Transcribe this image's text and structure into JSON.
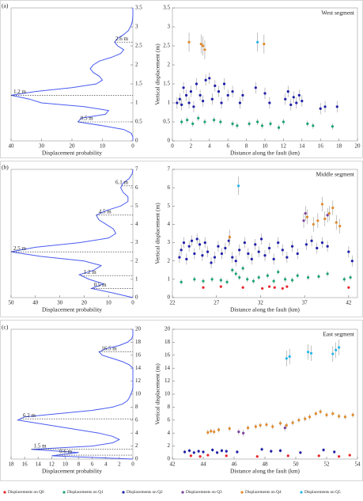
{
  "chart_data": [
    {
      "type": "density",
      "panel_label": "(a)",
      "xlabel": "Displacement probability",
      "color": "#4a5cf0",
      "xlim": [
        40,
        0
      ],
      "xticks": [
        40,
        30,
        20,
        10,
        0
      ],
      "ylim": [
        0,
        3.5
      ],
      "yticks": [
        0,
        0.5,
        1,
        1.5,
        2,
        2.5,
        3,
        3.5
      ],
      "y": [
        0,
        0.1,
        0.2,
        0.3,
        0.4,
        0.5,
        0.6,
        0.7,
        0.8,
        0.9,
        1.0,
        1.1,
        1.2,
        1.3,
        1.4,
        1.5,
        1.6,
        1.7,
        1.8,
        1.9,
        2.0,
        2.1,
        2.2,
        2.3,
        2.4,
        2.5,
        2.6,
        2.7,
        2.8,
        2.9,
        3.0,
        3.1,
        3.2,
        3.3,
        3.4,
        3.5
      ],
      "values": [
        0,
        0,
        0.5,
        3,
        10,
        18,
        17,
        9,
        8,
        16,
        30,
        34,
        40,
        32,
        20,
        12,
        10,
        11,
        13,
        14,
        13,
        11,
        7,
        4,
        3,
        5,
        6,
        5,
        3,
        1.5,
        0.8,
        0.3,
        0.1,
        0,
        0,
        0
      ],
      "annotations": [
        {
          "value": 2.6,
          "label": "2.6 m"
        },
        {
          "value": 1.2,
          "label": "1.2 m"
        },
        {
          "value": 0.5,
          "label": "0.5 m"
        }
      ]
    },
    {
      "type": "scatter",
      "title": "West segment",
      "xlabel": "Distance  along the fault (km)",
      "ylabel": "Vertical displacement (m)",
      "xlim": [
        0,
        20
      ],
      "xticks": [
        0,
        2,
        4,
        6,
        8,
        10,
        12,
        14,
        16,
        18,
        20
      ],
      "ylim": [
        0,
        3.5
      ],
      "yticks": [
        0,
        0.5,
        1,
        1.5,
        2,
        2.5,
        3,
        3.5
      ],
      "series": [
        {
          "name": "Displacements on Q1",
          "color": "#1aa371",
          "error": 0.08,
          "x": [
            1.0,
            1.6,
            2.2,
            2.8,
            3.5,
            4.5,
            5.2,
            6.5,
            7.0,
            8.3,
            9.2,
            9.7,
            10.6,
            11.5,
            12.0,
            14.6,
            15.2,
            17.3
          ],
          "values": [
            0.5,
            0.55,
            0.45,
            0.6,
            0.5,
            0.55,
            0.5,
            0.45,
            0.4,
            0.45,
            0.5,
            0.4,
            0.45,
            0.35,
            0.5,
            0.45,
            0.4,
            0.38
          ]
        },
        {
          "name": "Displacements on Q2",
          "color": "#1f1fa8",
          "error": 0.15,
          "x": [
            0.5,
            0.8,
            1.0,
            1.2,
            1.5,
            1.8,
            2.0,
            2.3,
            2.6,
            3.0,
            3.3,
            3.6,
            4.0,
            4.3,
            4.6,
            5.0,
            5.3,
            5.6,
            6.0,
            6.5,
            7.3,
            7.6,
            9.0,
            10.0,
            10.5,
            12.2,
            12.5,
            12.8,
            13.1,
            13.4,
            13.7,
            14.0,
            16.0,
            16.5,
            17.8
          ],
          "values": [
            1.0,
            1.1,
            0.95,
            1.4,
            1.2,
            1.0,
            1.3,
            0.9,
            1.5,
            1.2,
            1.05,
            1.6,
            1.65,
            1.1,
            1.45,
            1.3,
            1.0,
            1.5,
            1.2,
            1.3,
            1.0,
            1.2,
            1.4,
            1.25,
            1.0,
            1.1,
            1.3,
            0.95,
            1.15,
            1.0,
            1.2,
            1.05,
            0.85,
            0.9,
            0.9
          ]
        },
        {
          "name": "Displacements on Q4",
          "color": "#e08a2c",
          "error": 0.25,
          "x": [
            1.8,
            3.1,
            3.3,
            3.5,
            9.9
          ],
          "values": [
            2.6,
            2.55,
            2.5,
            2.4,
            2.55
          ]
        },
        {
          "name": "Displacements on Q5",
          "color": "#29b5e8",
          "error": 0.25,
          "x": [
            9.2
          ],
          "values": [
            2.6
          ]
        }
      ]
    },
    {
      "type": "density",
      "panel_label": "(b)",
      "xlabel": "Displacement probability",
      "color": "#4a5cf0",
      "xlim": [
        50,
        0
      ],
      "xticks": [
        50,
        40,
        30,
        20,
        10,
        0
      ],
      "ylim": [
        0,
        7
      ],
      "yticks": [
        0,
        1,
        2,
        3,
        4,
        5,
        6,
        7
      ],
      "y": [
        0,
        0.25,
        0.5,
        0.75,
        1.0,
        1.25,
        1.5,
        1.75,
        2.0,
        2.25,
        2.5,
        2.75,
        3.0,
        3.25,
        3.5,
        3.75,
        4.0,
        4.25,
        4.5,
        4.75,
        5.0,
        5.25,
        5.5,
        5.75,
        6.0,
        6.25,
        6.5,
        6.75,
        7.0
      ],
      "values": [
        0,
        8,
        17,
        12,
        18,
        22,
        16,
        13,
        20,
        38,
        50,
        40,
        22,
        10,
        7,
        8,
        11,
        14,
        15,
        11,
        5,
        2,
        2,
        4,
        5,
        4,
        1.5,
        0.3,
        0
      ],
      "annotations": [
        {
          "value": 6.1,
          "label": "6.1 m"
        },
        {
          "value": 4.5,
          "label": "4.5 m"
        },
        {
          "value": 2.5,
          "label": "2.5 m"
        },
        {
          "value": 1.2,
          "label": "1.2 m"
        },
        {
          "value": 0.5,
          "label": "0.5 m"
        }
      ]
    },
    {
      "type": "scatter",
      "title": "Middle segment",
      "xlabel": "Distance  along the fault (km)",
      "ylabel": "Vertical displacement (m)",
      "xlim": [
        22,
        43
      ],
      "xticks": [
        22,
        27,
        32,
        37,
        42
      ],
      "ylim": [
        0,
        7
      ],
      "yticks": [
        0,
        1,
        2,
        3,
        4,
        5,
        6,
        7
      ],
      "series": [
        {
          "name": "Displacements on Q0",
          "color": "#e8262b",
          "x": [
            25.5,
            27.5,
            30.0,
            32.2,
            33.0,
            33.6,
            34.5,
            35.0,
            42.0
          ],
          "values": [
            0.55,
            0.6,
            0.55,
            0.5,
            0.6,
            0.55,
            0.5,
            0.6,
            0.55
          ]
        },
        {
          "name": "Displacements on Q1",
          "color": "#1aa371",
          "error": 0.15,
          "x": [
            23,
            24.5,
            25.5,
            26.5,
            27.5,
            28.2,
            28.8,
            29.2,
            29.6,
            30.0,
            30.5,
            31.2,
            31.8,
            32.8,
            33.5,
            34.0,
            34.8,
            35.6,
            36.2,
            37.4,
            38.6,
            39.6,
            41.5,
            42.2
          ],
          "values": [
            0.85,
            1.0,
            0.9,
            1.0,
            0.95,
            0.85,
            1.5,
            1.3,
            1.1,
            1.6,
            1.0,
            0.9,
            1.1,
            1.2,
            0.9,
            1.4,
            1.0,
            0.95,
            1.2,
            1.1,
            1.15,
            1.3,
            1.0,
            1.1
          ]
        },
        {
          "name": "Displacements on Q2",
          "color": "#1f1fa8",
          "error": 0.3,
          "x": [
            22.8,
            23.0,
            23.3,
            23.6,
            23.9,
            24.2,
            24.5,
            24.8,
            25.1,
            25.4,
            25.7,
            26.0,
            26.4,
            26.8,
            27.2,
            27.6,
            28.0,
            28.4,
            28.8,
            29.2,
            29.6,
            30.2,
            30.6,
            31.0,
            31.4,
            31.8,
            32.1,
            32.5,
            33.0,
            33.5,
            34.0,
            34.5,
            35.0,
            35.6,
            36.2,
            37.2,
            37.8,
            38.4,
            39.0,
            39.6,
            42.0,
            42.4
          ],
          "values": [
            2.2,
            2.6,
            3.0,
            2.1,
            2.8,
            3.1,
            2.4,
            3.2,
            2.9,
            2.3,
            3.0,
            2.5,
            1.9,
            2.2,
            2.8,
            2.4,
            2.7,
            3.1,
            2.2,
            2.0,
            2.6,
            3.0,
            2.4,
            2.1,
            2.9,
            2.5,
            3.2,
            2.3,
            2.7,
            2.1,
            3.0,
            2.6,
            2.2,
            2.8,
            2.4,
            2.9,
            3.1,
            2.7,
            3.0,
            2.8,
            2.5,
            2.0
          ]
        },
        {
          "name": "Displacements on Q3",
          "color": "#7a3e9c",
          "error": 0.4,
          "x": [
            36.9,
            37.1,
            39.6
          ],
          "values": [
            4.2,
            4.6,
            4.5
          ]
        },
        {
          "name": "Displacements on Q4",
          "color": "#e08a2c",
          "error": 0.4,
          "x": [
            28.5,
            37.3,
            38.0,
            38.5,
            39.0,
            39.3,
            39.8,
            40.2,
            40.6,
            41.0
          ],
          "values": [
            3.3,
            4.4,
            4.0,
            4.2,
            5.1,
            4.3,
            4.6,
            4.9,
            4.1,
            3.9
          ]
        },
        {
          "name": "Displacements on Q5",
          "color": "#29b5e8",
          "error": 0.5,
          "x": [
            29.5
          ],
          "values": [
            6.1
          ]
        }
      ]
    },
    {
      "type": "density",
      "panel_label": "(c)",
      "xlabel": "Displacement probability",
      "color": "#4a5cf0",
      "xlim": [
        18,
        0
      ],
      "xticks": [
        18,
        16,
        14,
        12,
        10,
        8,
        6,
        4,
        2,
        0
      ],
      "ylim": [
        0,
        20
      ],
      "yticks": [
        0,
        2,
        4,
        6,
        8,
        10,
        12,
        14,
        16,
        18,
        20
      ],
      "y": [
        0,
        0.5,
        1,
        1.5,
        2,
        2.5,
        3,
        3.5,
        4,
        4.5,
        5,
        5.5,
        6,
        6.5,
        7,
        7.5,
        8,
        8.5,
        9,
        9.5,
        10,
        10.5,
        11,
        11.5,
        12,
        12.5,
        13,
        13.5,
        14,
        14.5,
        15,
        15.5,
        16,
        16.5,
        17,
        17.5,
        18,
        18.5,
        19,
        19.5,
        20
      ],
      "values": [
        0,
        12,
        8,
        15,
        6,
        3,
        2,
        3,
        5,
        8,
        11,
        14,
        17,
        16,
        11,
        6,
        3,
        1.5,
        0.8,
        0.5,
        0.3,
        0.1,
        0,
        0,
        0,
        0,
        0,
        0,
        0,
        0.5,
        1.5,
        3,
        4.5,
        5,
        4,
        2,
        0.8,
        0.2,
        0,
        0,
        0
      ],
      "annotations": [
        {
          "value": 16.5,
          "label": "16.5 m"
        },
        {
          "value": 6.2,
          "label": "6.2 m"
        },
        {
          "value": 1.5,
          "label": "1.5 m"
        },
        {
          "value": 0.6,
          "label": "0.6 m"
        }
      ]
    },
    {
      "type": "scatter",
      "title": "East segment",
      "xlabel": "Distance along the fault (km)",
      "ylabel": "Vertical displacement (m)",
      "xlim": [
        42,
        54
      ],
      "xticks": [
        42,
        44,
        46,
        48,
        50,
        52,
        54
      ],
      "ylim": [
        0,
        20
      ],
      "yticks": [
        0,
        2,
        4,
        6,
        8,
        10,
        12,
        14,
        16,
        18,
        20
      ],
      "series": [
        {
          "name": "Displacements on Q0",
          "color": "#e8262b",
          "x": [
            43.2,
            43.8,
            44.3,
            45.5,
            47.5,
            49.5,
            51.5,
            52.8,
            53.5
          ],
          "values": [
            0.5,
            0.4,
            0.6,
            0.5,
            0.4,
            0.5,
            0.5,
            0.4,
            0.6
          ]
        },
        {
          "name": "Displacements on Q2",
          "color": "#1f1fa8",
          "error": 0.3,
          "x": [
            42.8,
            43.1,
            43.4,
            43.7,
            44.0,
            44.6,
            44.9,
            45.2,
            45.5,
            46.2,
            47.8,
            48.4,
            49.0,
            50.3,
            51.8,
            52.5
          ],
          "values": [
            1.1,
            1.3,
            1.0,
            1.2,
            1.1,
            1.4,
            1.0,
            1.3,
            1.2,
            1.1,
            1.5,
            1.2,
            1.3,
            1.0,
            1.4,
            1.1
          ]
        },
        {
          "name": "Displacements on Q3",
          "color": "#7a3e9c",
          "error": 0.5,
          "x": [
            46.3,
            46.6,
            49.3
          ],
          "values": [
            4.2,
            4.0,
            4.8
          ]
        },
        {
          "name": "Displacements on Q4",
          "color": "#e08a2c",
          "error": 0.4,
          "x": [
            44.3,
            44.5,
            44.7,
            45.0,
            45.7,
            46.9,
            47.4,
            47.7,
            48.1,
            48.5,
            49.0,
            49.4,
            49.8,
            50.2,
            50.6,
            50.9,
            51.3,
            51.6,
            52.0,
            52.4,
            52.8,
            53.2,
            53.7
          ],
          "values": [
            4.1,
            4.3,
            4.2,
            4.5,
            4.7,
            4.8,
            5.0,
            5.2,
            5.3,
            5.0,
            5.5,
            5.2,
            5.6,
            6.0,
            6.2,
            6.5,
            7.0,
            7.3,
            6.8,
            7.0,
            6.6,
            6.5,
            6.8
          ]
        },
        {
          "name": "Displacements on Q5",
          "color": "#29b5e8",
          "error": 1.2,
          "x": [
            49.4,
            49.6,
            50.8,
            51.0,
            52.4,
            52.6,
            52.8
          ],
          "values": [
            15.5,
            15.8,
            16.5,
            16.3,
            16.2,
            16.8,
            17.2
          ]
        }
      ]
    }
  ]
}
